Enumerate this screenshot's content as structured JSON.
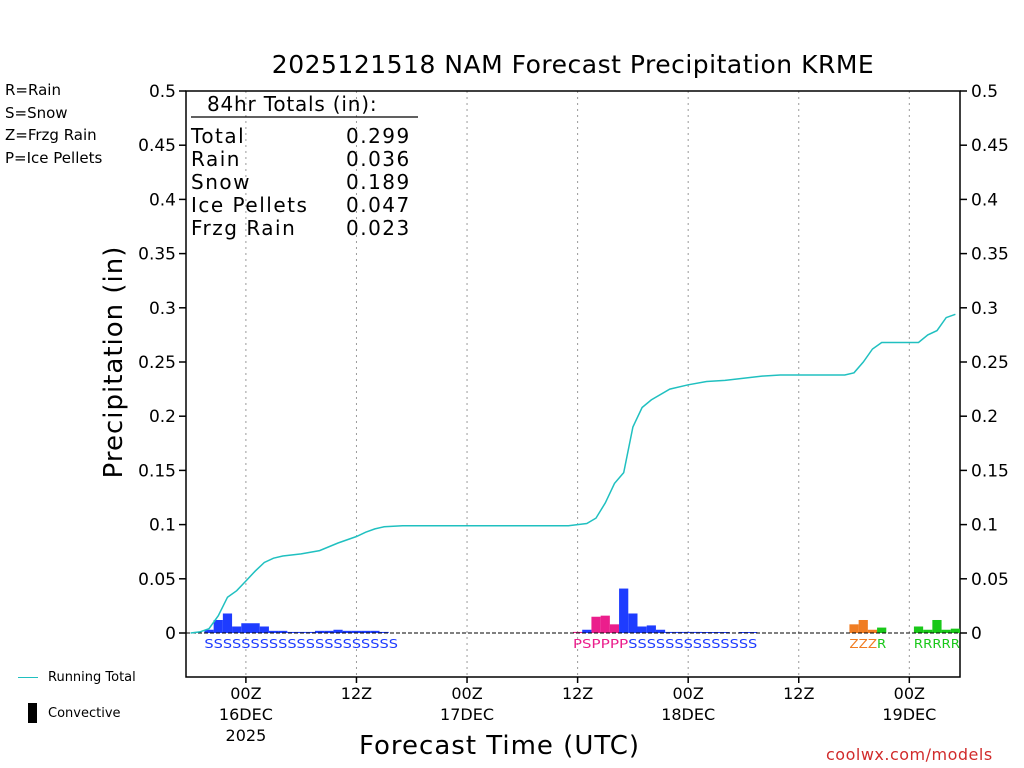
{
  "title": "2025121518 NAM Forecast Precipitation KRME",
  "legend": {
    "rain": "R=Rain",
    "snow": "S=Snow",
    "frzg_rain": "Z=Frzg Rain",
    "ice_pellets": "P=Ice Pellets",
    "running_total": "Running Total",
    "convective": "Convective"
  },
  "colors": {
    "rain": "#19c819",
    "snow": "#1e3cff",
    "frzg_rain": "#f07d23",
    "ice_pellets": "#eb1e8c",
    "running_total": "#20c0c0"
  },
  "totals_box": {
    "header": "84hr Totals (in):",
    "rows": [
      {
        "label": "Total",
        "value": "0.299"
      },
      {
        "label": "Rain",
        "value": "0.036"
      },
      {
        "label": "Snow",
        "value": "0.189"
      },
      {
        "label": "Ice Pellets",
        "value": "0.047"
      },
      {
        "label": "Frzg Rain",
        "value": "0.023"
      }
    ]
  },
  "footer": {
    "xaxis_title": "Forecast Time (UTC)",
    "credit": "coolwx.com/models"
  },
  "chart_data": {
    "type": "bar",
    "title": "2025121518 NAM Forecast Precipitation KRME",
    "xlabel": "Forecast Time (UTC)",
    "ylabel": "Precipitation (in)",
    "ylim": [
      0,
      0.5
    ],
    "xlim": [
      -6.5,
      77.5
    ],
    "y_ticks": [
      "0",
      "0.05",
      "0.1",
      "0.15",
      "0.2",
      "0.25",
      "0.3",
      "0.35",
      "0.4",
      "0.45",
      "0.5"
    ],
    "x_ticks": [
      {
        "hour": 0,
        "label": "00Z",
        "date": "16DEC",
        "year": "2025"
      },
      {
        "hour": 12,
        "label": "12Z",
        "date": "",
        "year": ""
      },
      {
        "hour": 24,
        "label": "00Z",
        "date": "17DEC",
        "year": ""
      },
      {
        "hour": 36,
        "label": "12Z",
        "date": "",
        "year": ""
      },
      {
        "hour": 48,
        "label": "00Z",
        "date": "18DEC",
        "year": ""
      },
      {
        "hour": 60,
        "label": "12Z",
        "date": "",
        "year": ""
      },
      {
        "hour": 72,
        "label": "00Z",
        "date": "19DEC",
        "year": ""
      }
    ],
    "bars": [
      {
        "hour": -4,
        "value": 0.003,
        "type": "snow"
      },
      {
        "hour": -3,
        "value": 0.012,
        "type": "snow"
      },
      {
        "hour": -2,
        "value": 0.018,
        "type": "snow"
      },
      {
        "hour": -1,
        "value": 0.006,
        "type": "snow"
      },
      {
        "hour": 0,
        "value": 0.009,
        "type": "snow"
      },
      {
        "hour": 1,
        "value": 0.009,
        "type": "snow"
      },
      {
        "hour": 2,
        "value": 0.006,
        "type": "snow"
      },
      {
        "hour": 3,
        "value": 0.002,
        "type": "snow"
      },
      {
        "hour": 4,
        "value": 0.002,
        "type": "snow"
      },
      {
        "hour": 5,
        "value": 0.001,
        "type": "snow"
      },
      {
        "hour": 6,
        "value": 0.001,
        "type": "snow"
      },
      {
        "hour": 7,
        "value": 0.001,
        "type": "snow"
      },
      {
        "hour": 8,
        "value": 0.002,
        "type": "snow"
      },
      {
        "hour": 9,
        "value": 0.002,
        "type": "snow"
      },
      {
        "hour": 10,
        "value": 0.003,
        "type": "snow"
      },
      {
        "hour": 11,
        "value": 0.002,
        "type": "snow"
      },
      {
        "hour": 12,
        "value": 0.002,
        "type": "snow"
      },
      {
        "hour": 13,
        "value": 0.002,
        "type": "snow"
      },
      {
        "hour": 14,
        "value": 0.002,
        "type": "snow"
      },
      {
        "hour": 15,
        "value": 0.001,
        "type": "snow"
      },
      {
        "hour": 36,
        "value": 0.001,
        "type": "ice_pellets"
      },
      {
        "hour": 37,
        "value": 0.003,
        "type": "snow"
      },
      {
        "hour": 38,
        "value": 0.015,
        "type": "ice_pellets"
      },
      {
        "hour": 39,
        "value": 0.016,
        "type": "ice_pellets"
      },
      {
        "hour": 40,
        "value": 0.008,
        "type": "ice_pellets"
      },
      {
        "hour": 41,
        "value": 0.041,
        "type": "snow"
      },
      {
        "hour": 42,
        "value": 0.018,
        "type": "snow"
      },
      {
        "hour": 43,
        "value": 0.006,
        "type": "snow"
      },
      {
        "hour": 44,
        "value": 0.007,
        "type": "snow"
      },
      {
        "hour": 45,
        "value": 0.003,
        "type": "snow"
      },
      {
        "hour": 46,
        "value": 0.001,
        "type": "snow"
      },
      {
        "hour": 47,
        "value": 0.001,
        "type": "snow"
      },
      {
        "hour": 48,
        "value": 0.001,
        "type": "snow"
      },
      {
        "hour": 49,
        "value": 0.001,
        "type": "snow"
      },
      {
        "hour": 50,
        "value": 0.0005,
        "type": "snow"
      },
      {
        "hour": 51,
        "value": 0.0005,
        "type": "snow"
      },
      {
        "hour": 52,
        "value": 0.0005,
        "type": "snow"
      },
      {
        "hour": 54,
        "value": 0.0005,
        "type": "snow"
      },
      {
        "hour": 55,
        "value": 0.0005,
        "type": "snow"
      },
      {
        "hour": 66,
        "value": 0.008,
        "type": "frzg_rain"
      },
      {
        "hour": 67,
        "value": 0.012,
        "type": "frzg_rain"
      },
      {
        "hour": 68,
        "value": 0.003,
        "type": "frzg_rain"
      },
      {
        "hour": 69,
        "value": 0.005,
        "type": "rain"
      },
      {
        "hour": 73,
        "value": 0.006,
        "type": "rain"
      },
      {
        "hour": 74,
        "value": 0.003,
        "type": "rain"
      },
      {
        "hour": 75,
        "value": 0.012,
        "type": "rain"
      },
      {
        "hour": 76,
        "value": 0.003,
        "type": "rain"
      },
      {
        "hour": 77,
        "value": 0.004,
        "type": "rain"
      }
    ],
    "running_total": {
      "hours": [
        -6,
        -5,
        -4,
        -3,
        -2,
        -1,
        0,
        1,
        2,
        3,
        4,
        6,
        8,
        10,
        12,
        13,
        14,
        15,
        17,
        20,
        24,
        28,
        32,
        35,
        36,
        37,
        38,
        39,
        40,
        41,
        42,
        43,
        44,
        46,
        48,
        50,
        52,
        54,
        56,
        58,
        60,
        62,
        64,
        65,
        66,
        67,
        68,
        69,
        70,
        71,
        72,
        73,
        74,
        75,
        76,
        77
      ],
      "values": [
        0.0,
        0.001,
        0.004,
        0.016,
        0.033,
        0.039,
        0.048,
        0.057,
        0.065,
        0.069,
        0.071,
        0.073,
        0.076,
        0.083,
        0.089,
        0.093,
        0.096,
        0.098,
        0.099,
        0.099,
        0.099,
        0.099,
        0.099,
        0.099,
        0.1,
        0.101,
        0.106,
        0.12,
        0.138,
        0.148,
        0.19,
        0.208,
        0.215,
        0.225,
        0.229,
        0.232,
        0.233,
        0.235,
        0.237,
        0.238,
        0.238,
        0.238,
        0.238,
        0.238,
        0.24,
        0.25,
        0.262,
        0.268,
        0.268,
        0.268,
        0.268,
        0.268,
        0.275,
        0.279,
        0.291,
        0.294
      ]
    },
    "type_letters": [
      {
        "text": "SSSSSSSSSSSSSSSSSSSSS",
        "type": "snow",
        "start_hour": -4
      },
      {
        "text": "PS",
        "type": "ice_pellets",
        "start_hour": 36
      },
      {
        "text": "PPPP",
        "type": "ice_pellets",
        "start_hour": 38
      },
      {
        "text": "SSSSSSSSSSSS",
        "type": "snow",
        "start_hour": 42
      },
      {
        "text": "SS",
        "type": "snow",
        "start_hour": 54
      },
      {
        "text": "ZZZ",
        "type": "frzg_rain",
        "start_hour": 66
      },
      {
        "text": "R",
        "type": "rain",
        "start_hour": 69
      },
      {
        "text": "RRRRR",
        "type": "rain",
        "start_hour": 73
      }
    ]
  }
}
